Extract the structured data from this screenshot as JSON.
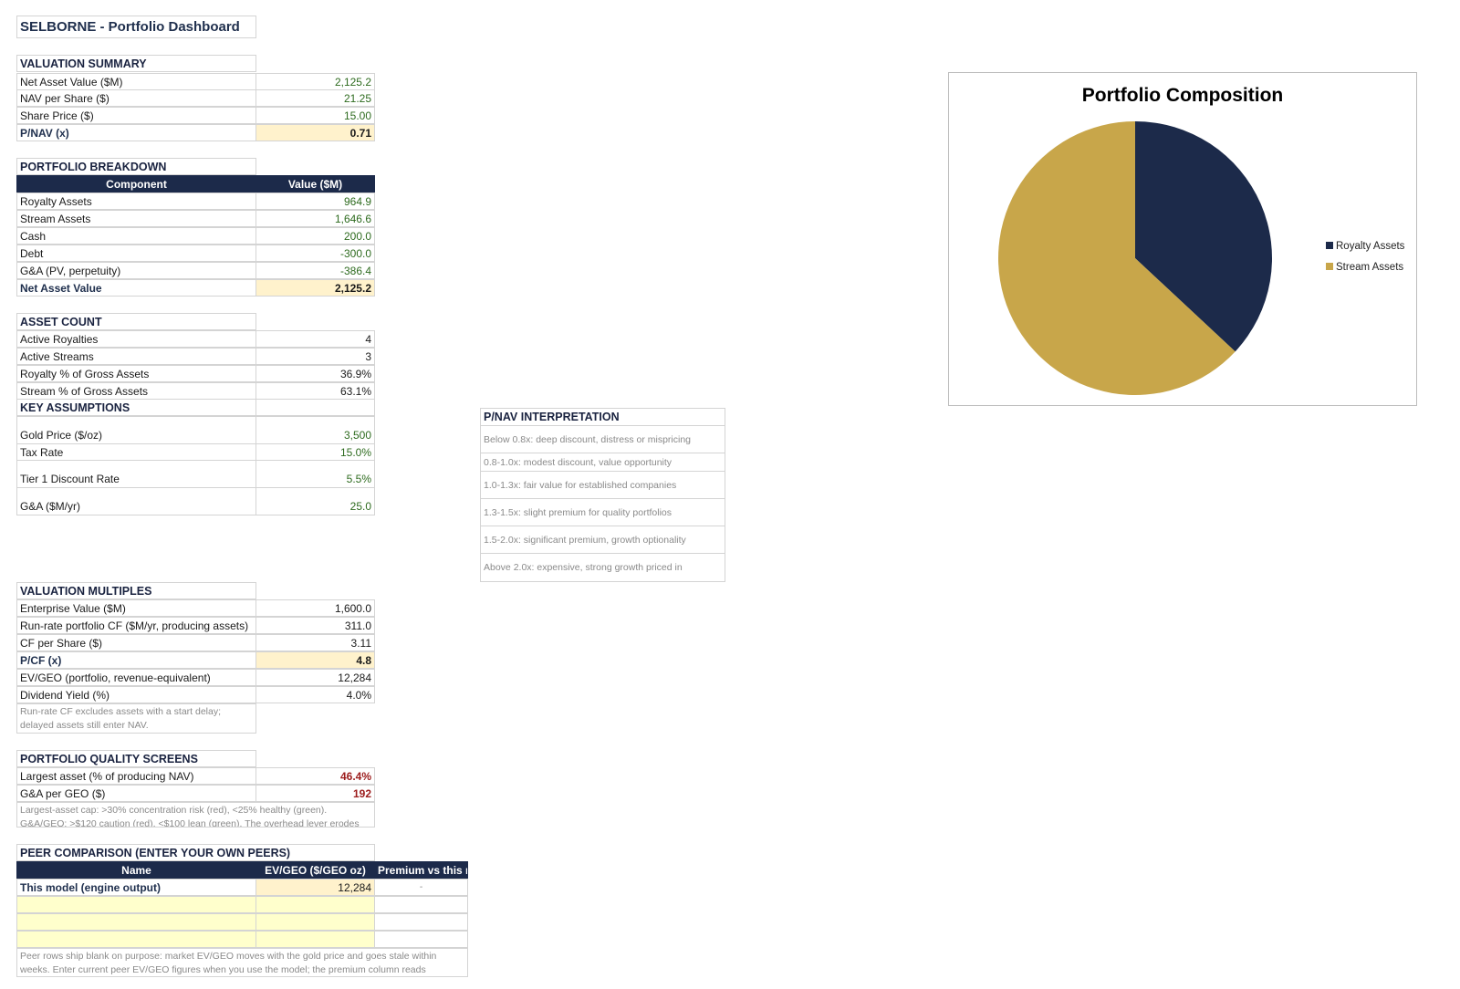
{
  "title": "SELBORNE - Portfolio Dashboard",
  "valuation_summary": {
    "heading": "VALUATION SUMMARY",
    "rows": [
      {
        "label": "Net Asset Value ($M)",
        "value": "2,125.2"
      },
      {
        "label": "NAV per Share ($)",
        "value": "21.25"
      },
      {
        "label": "Share Price ($)",
        "value": "15.00"
      },
      {
        "label": "P/NAV (x)",
        "value": "0.71"
      }
    ]
  },
  "portfolio_breakdown": {
    "heading": "PORTFOLIO BREAKDOWN",
    "col_component": "Component",
    "col_value": "Value ($M)",
    "rows": [
      {
        "label": "Royalty Assets",
        "value": "964.9"
      },
      {
        "label": "Stream Assets",
        "value": "1,646.6"
      },
      {
        "label": "Cash",
        "value": "200.0"
      },
      {
        "label": "Debt",
        "value": "-300.0"
      },
      {
        "label": "G&A (PV, perpetuity)",
        "value": "-386.4"
      },
      {
        "label": "Net Asset Value",
        "value": "2,125.2"
      }
    ]
  },
  "asset_count": {
    "heading": "ASSET COUNT",
    "rows": [
      {
        "label": "Active Royalties",
        "value": "4"
      },
      {
        "label": "Active Streams",
        "value": "3"
      },
      {
        "label": "Royalty % of Gross Assets",
        "value": "36.9%"
      },
      {
        "label": "Stream % of Gross Assets",
        "value": "63.1%"
      }
    ]
  },
  "key_assumptions": {
    "heading": "KEY ASSUMPTIONS",
    "rows": [
      {
        "label": "Gold Price ($/oz)",
        "value": "3,500"
      },
      {
        "label": "Tax Rate",
        "value": "15.0%"
      },
      {
        "label": "Tier 1 Discount Rate",
        "value": "5.5%"
      },
      {
        "label": "G&A ($M/yr)",
        "value": "25.0"
      }
    ]
  },
  "pnav_interpretation": {
    "heading": "P/NAV INTERPRETATION",
    "rows": [
      "Below 0.8x: deep discount, distress or mispricing",
      "0.8-1.0x: modest discount, value opportunity",
      "1.0-1.3x: fair value for established companies",
      "1.3-1.5x: slight premium for quality portfolios",
      "1.5-2.0x: significant premium, growth optionality",
      "Above 2.0x: expensive, strong growth priced in"
    ]
  },
  "valuation_multiples": {
    "heading": "VALUATION MULTIPLES",
    "rows": [
      {
        "label": "Enterprise Value ($M)",
        "value": "1,600.0"
      },
      {
        "label": "Run-rate portfolio CF ($M/yr, producing assets)",
        "value": "311.0"
      },
      {
        "label": "CF per Share ($)",
        "value": "3.11"
      },
      {
        "label": "P/CF (x)",
        "value": "4.8"
      },
      {
        "label": "EV/GEO (portfolio, revenue-equivalent)",
        "value": "12,284"
      },
      {
        "label": "Dividend Yield (%)",
        "value": "4.0%"
      }
    ],
    "note": "Run-rate CF excludes assets with a start delay; delayed assets still enter NAV."
  },
  "quality_screens": {
    "heading": "PORTFOLIO QUALITY SCREENS",
    "rows": [
      {
        "label": "Largest asset (% of producing NAV)",
        "value": "46.4%"
      },
      {
        "label": "G&A per GEO ($)",
        "value": "192"
      }
    ],
    "note": "Largest-asset cap: >30% concentration risk (red), <25% healthy (green). G&A/GEO: >$120 caution (red), <$100 lean (green). The overhead lever erodes"
  },
  "peer_comparison": {
    "heading": "PEER COMPARISON (ENTER YOUR OWN PEERS)",
    "col_name": "Name",
    "col_evgeo": "EV/GEO ($/GEO oz)",
    "col_premium": "Premium vs this model",
    "rows": [
      {
        "name": "This model (engine output)",
        "evgeo": "12,284",
        "premium": "-"
      },
      {
        "name": "",
        "evgeo": "",
        "premium": ""
      },
      {
        "name": "",
        "evgeo": "",
        "premium": ""
      },
      {
        "name": "",
        "evgeo": "",
        "premium": ""
      }
    ],
    "note": "Peer rows ship blank on purpose: market EV/GEO moves with the gold price and goes stale within weeks. Enter current peer EV/GEO figures when you use the model; the premium column reads"
  },
  "chart_data": {
    "type": "pie",
    "title": "Portfolio Composition",
    "categories": [
      "Royalty Assets",
      "Stream Assets"
    ],
    "values": [
      964.9,
      1646.6
    ],
    "colors": [
      "#1c2a4a",
      "#c8a64a"
    ],
    "legend": "right"
  }
}
